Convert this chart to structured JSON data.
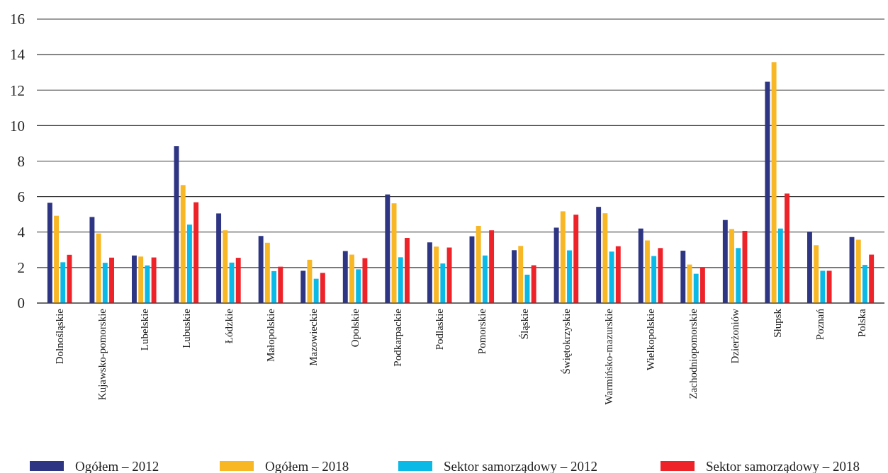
{
  "chart_data": {
    "type": "bar",
    "categories": [
      "Dolnośląskie",
      "Kujawsko-pomorskie",
      "Lubelskie",
      "Lubuskie",
      "Łódzkie",
      "Małopolskie",
      "Mazowieckie",
      "Opolskie",
      "Podkarpackie",
      "Podlaskie",
      "Pomorskie",
      "Śląskie",
      "Świętokrzyskie",
      "Warmińsko-mazurskie",
      "Wielkopolskie",
      "Zachodniopomorskie",
      "Dzierżoniów",
      "Słupsk",
      "Poznań",
      "Polska"
    ],
    "series": [
      {
        "name": "Ogółem – 2012",
        "color": "#2e3583",
        "values": [
          5.65,
          4.85,
          2.68,
          8.85,
          5.05,
          3.78,
          1.82,
          2.93,
          6.12,
          3.42,
          3.76,
          2.98,
          4.25,
          5.42,
          4.2,
          2.95,
          4.68,
          12.47,
          4.02,
          3.72
        ]
      },
      {
        "name": "Ogółem – 2018",
        "color": "#f8b725",
        "values": [
          4.92,
          3.92,
          2.62,
          6.65,
          4.1,
          3.4,
          2.44,
          2.73,
          5.62,
          3.18,
          4.35,
          3.22,
          5.17,
          5.06,
          3.53,
          2.17,
          4.17,
          13.57,
          3.26,
          3.57
        ]
      },
      {
        "name": "Sektor samorządowy – 2012",
        "color": "#0bb9e6",
        "values": [
          2.3,
          2.27,
          2.12,
          4.42,
          2.28,
          1.8,
          1.37,
          1.9,
          2.58,
          2.23,
          2.68,
          1.6,
          2.97,
          2.9,
          2.65,
          1.65,
          3.1,
          4.2,
          1.82,
          2.15
        ]
      },
      {
        "name": "Sektor samorządowy – 2018",
        "color": "#ee2229",
        "values": [
          2.72,
          2.56,
          2.57,
          5.68,
          2.55,
          2.05,
          1.7,
          2.53,
          3.67,
          3.13,
          4.1,
          2.13,
          4.98,
          3.2,
          3.1,
          2.0,
          4.07,
          6.17,
          1.82,
          2.73
        ]
      }
    ],
    "ylim": [
      0,
      16
    ],
    "yticks": [
      0,
      2,
      4,
      6,
      8,
      10,
      12,
      14,
      16
    ],
    "grid": "y",
    "legend": "bottom"
  }
}
